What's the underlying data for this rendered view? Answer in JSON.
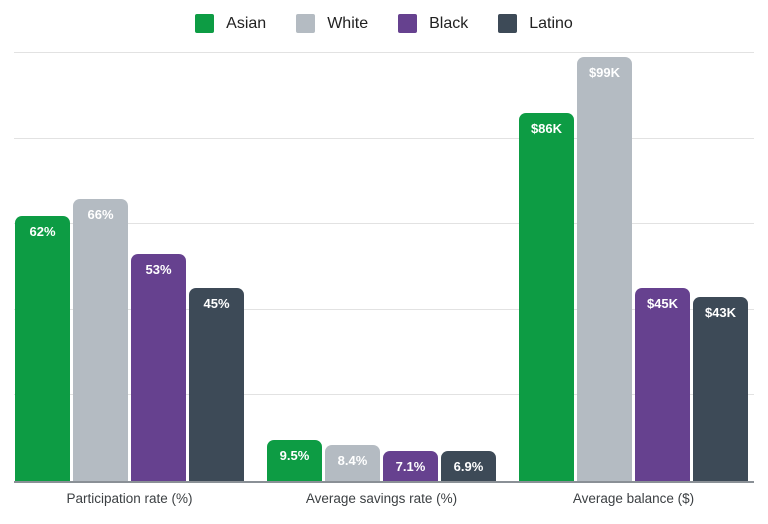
{
  "chart_data": {
    "type": "bar",
    "title": "",
    "categories": [
      "Participation rate (%)",
      "Average savings rate (%)",
      "Average balance ($)"
    ],
    "series": [
      {
        "name": "Asian",
        "color": "#0d9c44",
        "values": [
          62,
          9.5,
          86
        ],
        "data_labels": [
          "62%",
          "9.5%",
          "$86K"
        ]
      },
      {
        "name": "White",
        "color": "#b4bbc2",
        "values": [
          66,
          8.4,
          99
        ],
        "data_labels": [
          "66%",
          "8.4%",
          "$99K"
        ]
      },
      {
        "name": "Black",
        "color": "#66418f",
        "values": [
          53,
          7.1,
          45
        ],
        "data_labels": [
          "53%",
          "7.1%",
          "$45K"
        ]
      },
      {
        "name": "Latino",
        "color": "#3d4a57",
        "values": [
          45,
          6.9,
          43
        ],
        "data_labels": [
          "45%",
          "6.9%",
          "$43K"
        ]
      }
    ],
    "axis": {
      "y_min": 0,
      "y_max": 100,
      "gridline_step": 20,
      "grid": true,
      "y_tick_labels_visible": false,
      "note": "percent values and $K values share one 0-100 plot scale"
    },
    "legend_position": "top",
    "colors": {
      "gridline": "#e2e2e2",
      "axis_line": "#8a9096",
      "bar_label_text": "#ffffff",
      "category_label_text": "#3c4043",
      "legend_text": "#212121",
      "background": "#ffffff"
    }
  }
}
